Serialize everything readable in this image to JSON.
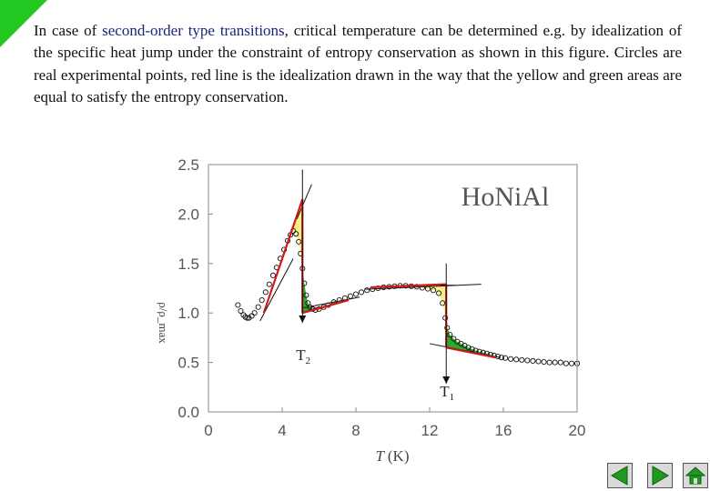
{
  "caption": {
    "before": "In case of ",
    "highlight": "second-order type transitions",
    "after": ", critical temperature can be determined e.g. by idealization of the specific heat jump under the constraint of entropy conservation as shown in this figure. Circles are real experimental points, red line is the idealization drawn in the way that the yellow and green areas are equal to satisfy the entropy conservation."
  },
  "colors": {
    "highlight": "#1a237e",
    "red_line": "#d01818",
    "yellow_area": "#f7f08a",
    "green_area": "#2fa82f",
    "corner": "#22c922",
    "nav_green": "#1f9a1f"
  },
  "chart_data": {
    "type": "scatter",
    "title": "HoNiAl",
    "xlabel": "T (K)",
    "ylabel": "ρ/ρ_max",
    "xlim": [
      0,
      20
    ],
    "ylim": [
      0,
      2.5
    ],
    "xticks": [
      "0",
      "4",
      "8",
      "12",
      "16",
      "20"
    ],
    "yticks": [
      "0.0",
      "0.5",
      "1.0",
      "1.5",
      "2.0",
      "2.5"
    ],
    "grid": false,
    "series": [
      {
        "marker": "open-circle",
        "x": [
          1.6,
          1.75,
          1.9,
          2.0,
          2.1,
          2.2,
          2.35,
          2.5,
          2.7,
          2.9,
          3.1,
          3.3,
          3.5,
          3.7,
          3.9,
          4.1,
          4.3,
          4.45,
          4.6,
          4.75,
          4.9,
          5.0,
          5.1,
          5.2,
          5.3,
          5.4,
          5.5,
          5.65,
          5.8,
          6.0,
          6.25,
          6.5,
          6.8,
          7.1,
          7.4,
          7.7,
          8.0,
          8.3,
          8.6,
          8.9,
          9.2,
          9.5,
          9.8,
          10.1,
          10.4,
          10.7,
          11.0,
          11.3,
          11.6,
          11.9,
          12.2,
          12.5,
          12.7,
          12.85,
          12.95,
          13.1,
          13.3,
          13.5,
          13.7,
          13.9,
          14.1,
          14.3,
          14.5,
          14.7,
          14.9,
          15.1,
          15.3,
          15.5,
          15.7,
          15.9,
          16.1,
          16.4,
          16.7,
          17.0,
          17.3,
          17.6,
          17.9,
          18.2,
          18.5,
          18.8,
          19.1,
          19.4,
          19.7,
          20.0
        ],
        "y": [
          1.08,
          1.02,
          0.98,
          0.96,
          0.95,
          0.95,
          0.97,
          1.0,
          1.06,
          1.13,
          1.21,
          1.29,
          1.38,
          1.46,
          1.55,
          1.64,
          1.73,
          1.79,
          1.83,
          1.8,
          1.72,
          1.6,
          1.45,
          1.3,
          1.18,
          1.1,
          1.06,
          1.04,
          1.03,
          1.04,
          1.06,
          1.08,
          1.11,
          1.13,
          1.15,
          1.17,
          1.19,
          1.21,
          1.23,
          1.24,
          1.25,
          1.26,
          1.265,
          1.27,
          1.275,
          1.275,
          1.27,
          1.265,
          1.255,
          1.245,
          1.23,
          1.2,
          1.1,
          0.95,
          0.85,
          0.78,
          0.74,
          0.71,
          0.69,
          0.67,
          0.65,
          0.635,
          0.62,
          0.61,
          0.6,
          0.59,
          0.58,
          0.57,
          0.56,
          0.55,
          0.545,
          0.535,
          0.53,
          0.525,
          0.52,
          0.515,
          0.51,
          0.505,
          0.5,
          0.5,
          0.5,
          0.49,
          0.49,
          0.49
        ]
      }
    ],
    "idealization": {
      "t2": {
        "slope_line": [
          [
            3.0,
            1.0
          ],
          [
            5.1,
            2.15
          ]
        ],
        "jump_x": 5.1,
        "jump_y": [
          2.15,
          1.0
        ],
        "after_line": [
          [
            5.1,
            1.0
          ],
          [
            7.6,
            1.13
          ]
        ]
      },
      "t1": {
        "plateau": [
          [
            8.8,
            1.26
          ],
          [
            12.9,
            1.29
          ]
        ],
        "jump_x": 12.9,
        "jump_y": [
          1.29,
          0.65
        ],
        "after_line": [
          [
            12.9,
            0.65
          ],
          [
            15.6,
            0.55
          ]
        ]
      }
    },
    "annotations": [
      {
        "label": "T",
        "subscript": "2",
        "x": 5.1
      },
      {
        "label": "T",
        "subscript": "1",
        "x": 12.9
      }
    ]
  }
}
